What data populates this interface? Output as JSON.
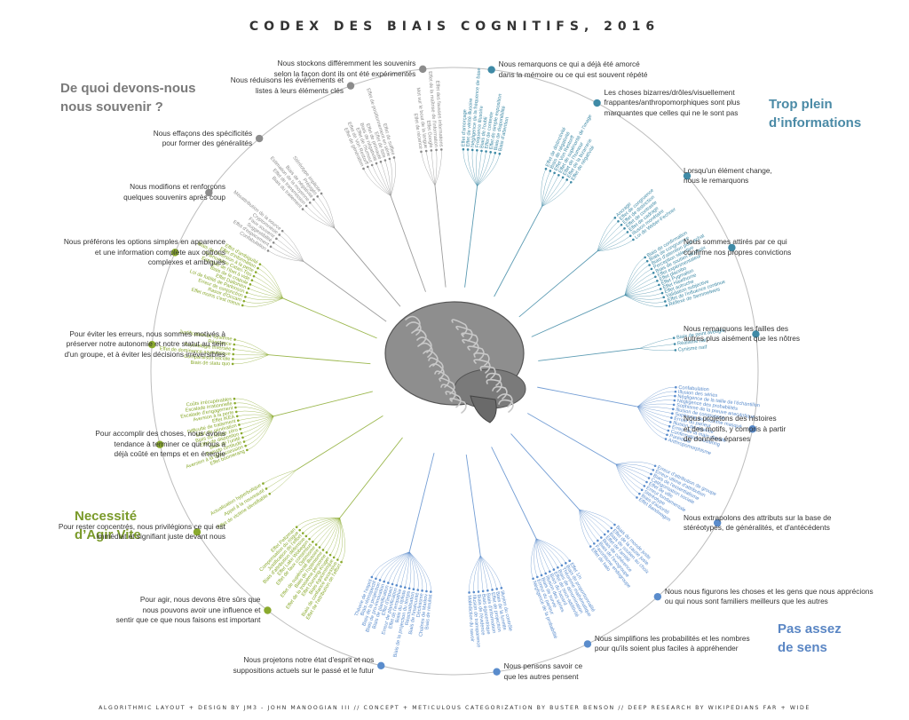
{
  "title": "CODEX DES BIAIS COGNITIFS, 2016",
  "footer": "ALGORITHMIC LAYOUT + DESIGN BY JM3 - JOHN MANOOGIAN III // CONCEPT + METICULOUS CATEGORIZATION BY BUSTER BENSON // DEEP RESEARCH BY WIKIPEDIANS FAR + WIDE",
  "colors": {
    "memory": "#8c8c8c",
    "info": "#3f8aa6",
    "speed": "#8aaa2e",
    "meaning": "#5a8ccc",
    "ring": "#bdbdbd"
  },
  "brain_icon": "brain-illustration",
  "quadrants": {
    "memory": [
      "De quoi devons-nous",
      "nous souvenir ?"
    ],
    "info": [
      "Trop plein",
      "d’informations"
    ],
    "speed": [
      "Necessité",
      "d’Agir Vite"
    ],
    "meaning": [
      "Pas assez",
      "de sens"
    ]
  },
  "clusters": [
    {
      "id": "m1",
      "group": "memory",
      "dot_angle": 96,
      "text": [
        "Nous stockons différemment les souvenirs",
        "selon la façon dont ils ont été expérimentés"
      ],
      "side": "r",
      "biases": [
        "Effet des fausses informations",
        "Effet de la maîtrise de l'information",
        "Effet Google",
        "Mot sur le bout de la langue",
        "Effet de récence"
      ]
    },
    {
      "id": "m2",
      "group": "memory",
      "dot_angle": 110,
      "text": [
        "Nous réduisons les événements et",
        "listes à leurs éléments clés"
      ],
      "side": "r",
      "biases": [
        "Effet de suffixe",
        "Effet de positionnement en série",
        "Effet de liste",
        "Effet de primauté",
        "Biais de négativité",
        "Effet de l'humour",
        "Effet de Von Restorff",
        "Effet de génération"
      ]
    },
    {
      "id": "m3",
      "group": "memory",
      "dot_angle": 130,
      "text": [
        "Nous effaçons des spécificités",
        "pour former des généralités"
      ],
      "side": "r",
      "biases": [
        "Stéréotype implicite",
        "Préjugés",
        "Biais de négativité",
        "Estimation de la moyenne",
        "Effet de transmission",
        "Biais du traitement"
      ]
    },
    {
      "id": "m4",
      "group": "memory",
      "dot_angle": 144,
      "text": [
        "Nous modifions et renforçons",
        "quelques souvenirs après coup"
      ],
      "side": "r",
      "biases": [
        "Mésattribution de la source",
        "Cryptomnésie",
        "Faux souvenir",
        "Suggestibilité",
        "Effet d'espacement",
        "Confabulation"
      ]
    },
    {
      "id": "s1",
      "group": "speed",
      "dot_angle": 157,
      "text": [
        "Nous préférons les options simples en apparence",
        "et une information complète aux options",
        "complexes et ambiguës"
      ],
      "side": "r",
      "biases": [
        "Effet d'ambiguïté",
        "Effet d'information",
        "Biais de l'aversion à la perte",
        "Phénomène Catan-Tiss",
        "Exemple de l'ibet à vide",
        "Biais de la crapule",
        "Effet Daltonien",
        "Loi de futilité de Parkinson",
        "Erreur de conjonction",
        "Rasoir d'Occam",
        "Effet moins c'est mieux"
      ]
    },
    {
      "id": "s2",
      "group": "speed",
      "dot_angle": 175,
      "text": [
        "Pour éviter les erreurs, nous sommes motivés à",
        "préserver notre autonomie et notre statut au sein",
        "d'un groupe, et à éviter les décisions irréversibles"
      ],
      "side": "r",
      "biases": [
        "Justification du Système",
        "Réactance",
        "Psychologie inversée",
        "Effet de dominance asymétrique",
        "Comparaison sociale",
        "Biais de statu quo"
      ]
    },
    {
      "id": "s3",
      "group": "speed",
      "dot_angle": 194,
      "text": [
        "Pour accomplir des choses, nous avons",
        "tendance à terminer ce qui nous a",
        "déjà coûté en temps et en énergie"
      ],
      "side": "r",
      "biases": [
        "Coûts irrécupérables",
        "Escalade irrationnelle",
        "Escalade d'engagement",
        "Aversion à la perte",
        "Effet IKEA",
        "Difficulté de traitement",
        "Effet de génération",
        "Biais du risque zéro",
        "Effet de dispositon",
        "Biais de l'unité",
        "Pseudo certitude",
        "Aversion à la dépossession",
        "Effet boomerang"
      ]
    },
    {
      "id": "s4",
      "group": "speed",
      "dot_angle": 212,
      "text": [
        "Pour rester concentrés, nous privilégions ce qui est",
        "immédiat et signifiant juste devant nous"
      ],
      "side": "r",
      "biases": [
        "Actualisation hyperbolique",
        "Appel à la nouveauté",
        "Effet de victime identifiable"
      ]
    },
    {
      "id": "s5",
      "group": "speed",
      "dot_angle": 232,
      "text": [
        "Pour agir, nous devons être sûrs que",
        "nous pouvons avoir une influence et",
        "sentir que ce que nous faisons est important"
      ],
      "side": "r",
      "biases": [
        "Effet Peltzman",
        "Compensation du risque",
        "Justification de l'effort",
        "Biais d'attribution défensive",
        "Effet Lake Wobegon",
        "Effet de faux consensus",
        "Optimisme",
        "Effet de supériorité illusoire",
        "Biais de l'optimisme",
        "Effet de la troisième personne",
        "Effet Dunning-Kruger",
        "Biais égocentrique",
        "Biais de confiance excessive",
        "Effet de l'attribution de l'effort"
      ]
    },
    {
      "id": "n1",
      "group": "meaning",
      "dot_angle": 256,
      "text": [
        "Nous projetons notre état d'esprit et nos",
        "suppositions actuels sur le passé et le futur"
      ],
      "side": "r",
      "biases": [
        "Théorie de l'esprit",
        "Biais rétrospectif",
        "Biais de la projection",
        "Biais de pro-innovation",
        "Biais de planification",
        "Effet d'impact",
        "Erreur de planification",
        "Effet de l'empathie",
        "Biais du ripliste",
        "Biais de la projection du temps",
        "Réactualisation",
        "Biais de l'insécurité",
        "Déclinisme",
        "Chaînes de Markov",
        "Biais de résultat"
      ]
    },
    {
      "id": "n2",
      "group": "meaning",
      "dot_angle": 278,
      "text": [
        "Nous pensons savoir ce",
        "que les autres pensent"
      ],
      "side": "l",
      "biases": [
        "Malédiction du savoir",
        "Illusion de transparence",
        "Biais de l'évidence",
        "Biais égocentrique",
        "Biais d'information",
        "Effet de projection",
        "Biais de la lunette",
        "Illusion du contrôle"
      ]
    },
    {
      "id": "n3",
      "group": "meaning",
      "dot_angle": 296,
      "text": [
        "Nous simplifions les probabilités et les nombres",
        "pour qu'ils soient plus faciles à appréhender"
      ],
      "side": "l",
      "biases": [
        "Négligence de la probabilité",
        "Erreur du parieur",
        "Biais de survie",
        "Illusion des séries",
        "Biais du hasard",
        "Effet de sous-additivité",
        "Biais de dénomination",
        "Théorème mathématique",
        "Biais de proportionnalité",
        "Effet 1/n"
      ]
    },
    {
      "id": "n4",
      "group": "meaning",
      "dot_angle": 312,
      "text": [
        "Nous nous figurons les choses et les gens que nous apprécions",
        "ou qui nous sont familiers meilleurs que les autres"
      ],
      "side": "l",
      "biases": [
        "Effet de halo",
        "Favoritisme endogroupe",
        "Biais de l'exogroupe",
        "Biais de cohérence",
        "Effet de l'amitié",
        "Biais de soutien au choix",
        "Effet de la cause juste",
        "Biais du monde juste"
      ]
    },
    {
      "id": "n5",
      "group": "meaning",
      "dot_angle": 330,
      "text": [
        "Nous extrapolons des attributs sur la base de",
        "stéréotypes, de généralités, et d'antécédents"
      ],
      "side": "l",
      "biases": [
        "Effet Bandwagon",
        "Biais d'autorité",
        "Stéréotype",
        "Erreur fondamentale",
        "Effet de ville",
        "Catégorisation sociale",
        "Biais de l'essentialisme",
        "Erreur ultime d'attribution",
        "Erreur d'attribution de groupe"
      ]
    },
    {
      "id": "n6",
      "group": "meaning",
      "dot_angle": 349,
      "text": [
        "Nous projetons des histoires",
        "et des motifs, y compris à partir",
        "de données éparses"
      ],
      "side": "l",
      "biases": [
        "Anthropomorphisme",
        "Paréidolie",
        "Confirmation clustering",
        "Erreur de la main chaude",
        "Illusion de récence",
        "Erreur du parieur",
        "Sophisme de l'homme masqué",
        "Illusion de congruence",
        "Sophisme de la preuve anecdotique",
        "Négligence des probabilités",
        "Négligence de la taille de l'échantillon",
        "Illusion des séries",
        "Confabulation"
      ]
    },
    {
      "id": "i1",
      "group": "info",
      "dot_angle": 7,
      "text": [
        "Nous remarquons les failles des",
        "autres plus aisément que les nôtres"
      ],
      "side": "l",
      "biases": [
        "Cynisme naïf",
        "Réalisme naïf",
        "Biais de point aveugle"
      ]
    },
    {
      "id": "i2",
      "group": "info",
      "dot_angle": 24,
      "text": [
        "Nous sommes attirés par ce qui",
        "confirme nos propres convictions"
      ],
      "side": "l",
      "biases": [
        "Réflexe de Semmelweis",
        "Effet de l'influence continue",
        "Validation subjective",
        "Effet autruche",
        "Effet Hawthorne",
        "Effet Pygmalion",
        "Effet placebo",
        "Effet expérimentateur",
        "Biais de soutien au choix",
        "Perception sélective",
        "Biais d'attention post-achat",
        "Biais de congruence",
        "Biais de confirmation"
      ]
    },
    {
      "id": "i3",
      "group": "info",
      "dot_angle": 40,
      "text": [
        "Lorsqu'un élément change,",
        "nous le remarquons"
      ],
      "side": "l",
      "biases": [
        "Loi de Weber-Fechner",
        "Illusion monétaire",
        "Effet de cadrage",
        "Effet de contraste",
        "Effet de distinction",
        "Effet de congruence",
        "Ancrage"
      ]
    },
    {
      "id": "i4",
      "group": "info",
      "dot_angle": 62,
      "text": [
        "Les choses bizarres/drôles/visuellement",
        "frappantes/anthropomorphiques sont plus",
        "marquantes que celles qui ne le sont pas"
      ],
      "side": "l",
      "biases": [
        "Effet de négativité",
        "Effet de la bizarrerie",
        "Effet de l'humour",
        "Effet de supériorité de l'image",
        "Effet Von Restorff",
        "Biais de négativité",
        "Effet de distinctivité"
      ]
    },
    {
      "id": "i5",
      "group": "info",
      "dot_angle": 83,
      "text": [
        "Nous remarquons ce qui a déjà été amorcé",
        "dans la mémoire ou ce qui est souvent répété"
      ],
      "side": "l",
      "biases": [
        "Biais d'attention",
        "Biais de disponibilité",
        "Effet de simple exposition",
        "Effet de contexte",
        "Biais de l'oubli",
        "Fréquence illusoire",
        "Négligence de la fréquence de base",
        "Effet de vérité illusoire",
        "Effet d'amorçage"
      ]
    }
  ]
}
